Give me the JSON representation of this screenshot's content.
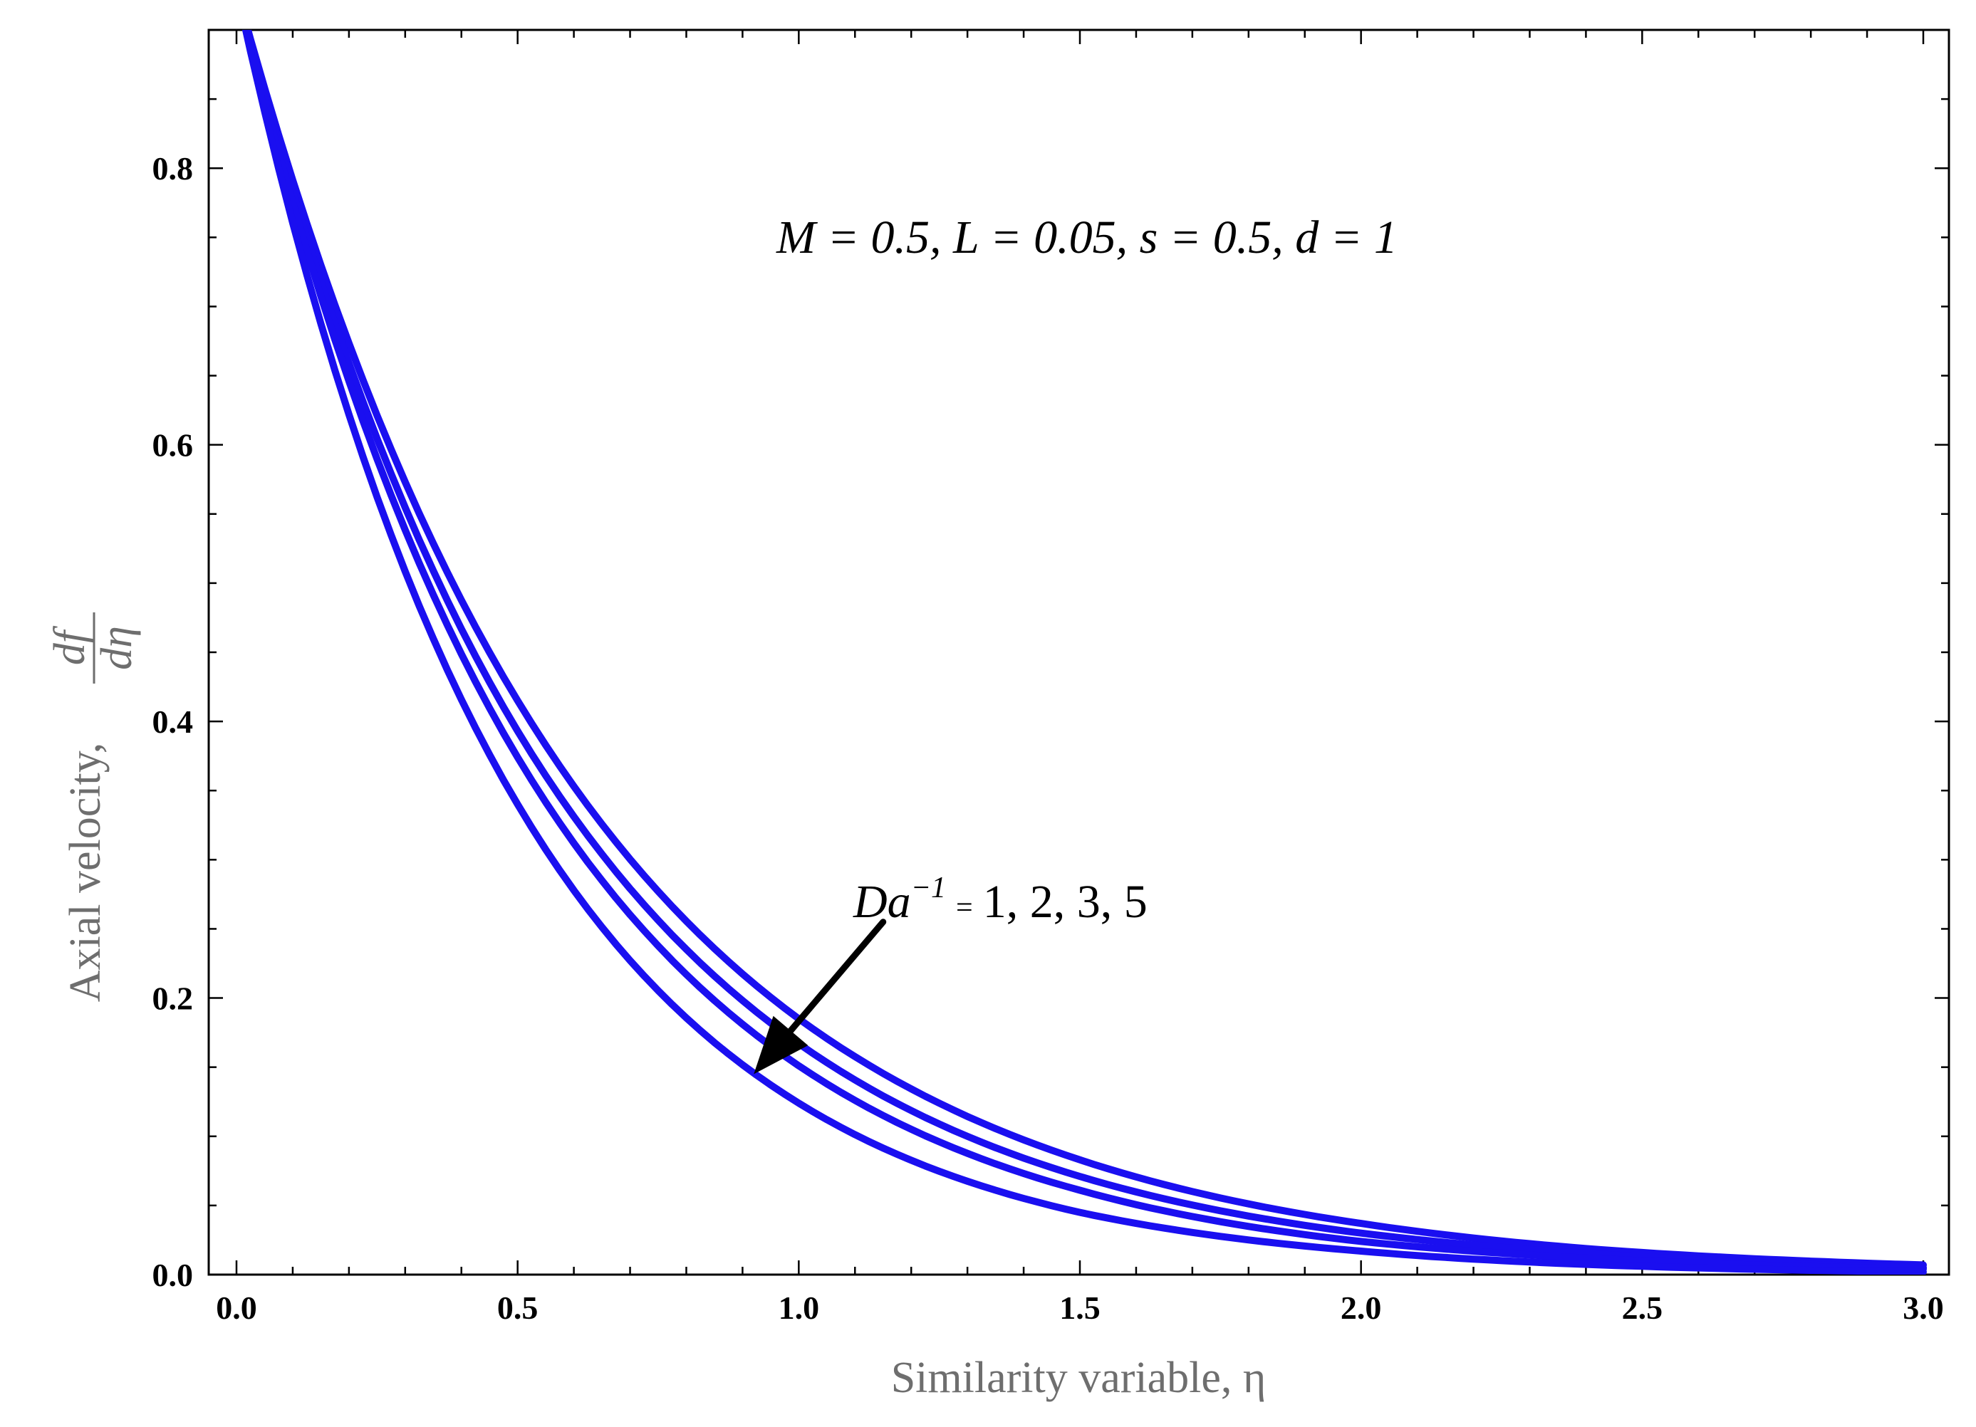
{
  "chart_data": {
    "type": "line",
    "xlabel": "Similarity variable, η",
    "ylabel_text": "Axial velocity,",
    "ylabel_fraction": {
      "numerator": "df",
      "denominator": "dη"
    },
    "xlim": [
      0.0,
      3.0
    ],
    "ylim": [
      0.0,
      0.9
    ],
    "x_ticks": [
      "0.0",
      "0.5",
      "1.0",
      "1.5",
      "2.0",
      "2.5",
      "3.0"
    ],
    "y_ticks": [
      "0.0",
      "0.2",
      "0.4",
      "0.6",
      "0.8"
    ],
    "grid": false,
    "line_color": "#1a0ff0",
    "series": [
      {
        "da_inverse": 1,
        "x": [
          0.0,
          0.5,
          1.0,
          1.5,
          2.0,
          2.5,
          3.0
        ],
        "y": [
          0.93,
          0.415,
          0.185,
          0.083,
          0.037,
          0.016,
          0.007
        ]
      },
      {
        "da_inverse": 2,
        "x": [
          0.0,
          0.5,
          1.0,
          1.5,
          2.0,
          2.5,
          3.0
        ],
        "y": [
          0.93,
          0.393,
          0.167,
          0.071,
          0.03,
          0.013,
          0.005
        ]
      },
      {
        "da_inverse": 3,
        "x": [
          0.0,
          0.5,
          1.0,
          1.5,
          2.0,
          2.5,
          3.0
        ],
        "y": [
          0.93,
          0.374,
          0.151,
          0.061,
          0.024,
          0.01,
          0.004
        ]
      },
      {
        "da_inverse": 5,
        "x": [
          0.0,
          0.5,
          1.0,
          1.5,
          2.0,
          2.5,
          3.0
        ],
        "y": [
          0.93,
          0.34,
          0.124,
          0.045,
          0.017,
          0.006,
          0.002
        ]
      }
    ],
    "annotations": {
      "params": "M = 0.5, L = 0.05, s = 0.5, d = 1",
      "da_label": {
        "symbol": "Da",
        "exponent": "−1",
        "equals": "=",
        "values": "1, 2, 3, 5"
      },
      "arrow": {
        "from": [
          1.15,
          0.255
        ],
        "to": [
          0.92,
          0.145
        ]
      }
    }
  }
}
